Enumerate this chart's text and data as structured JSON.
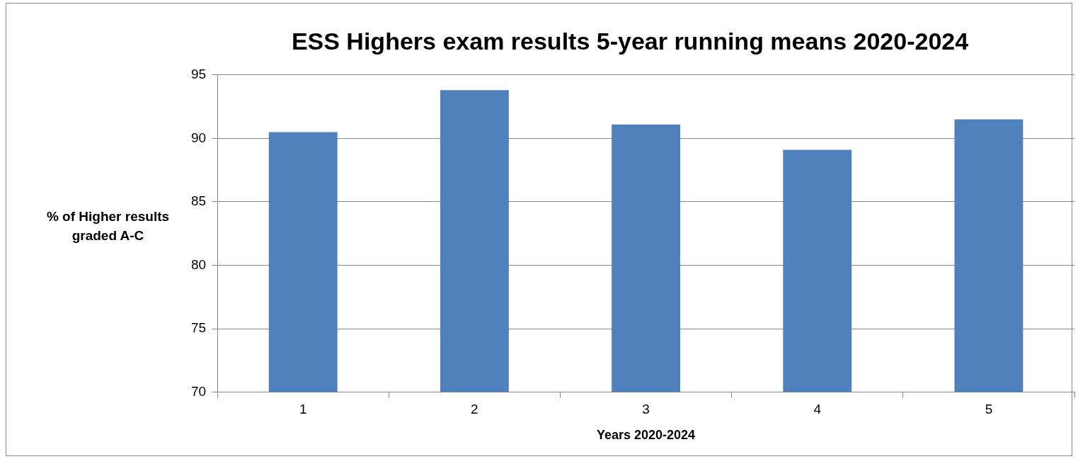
{
  "chart_data": {
    "type": "bar",
    "title": "ESS Highers exam results 5-year running means 2020-2024",
    "xlabel": "Years 2020-2024",
    "ylabel": "% of Higher results graded A-C",
    "categories": [
      "1",
      "2",
      "3",
      "4",
      "5"
    ],
    "values": [
      90.5,
      93.8,
      91.1,
      89.1,
      91.5
    ],
    "color": "#4f81bd",
    "ylim": [
      70,
      95
    ],
    "yticks": [
      70,
      75,
      80,
      85,
      90,
      95
    ],
    "grid": "y",
    "legend": false
  }
}
